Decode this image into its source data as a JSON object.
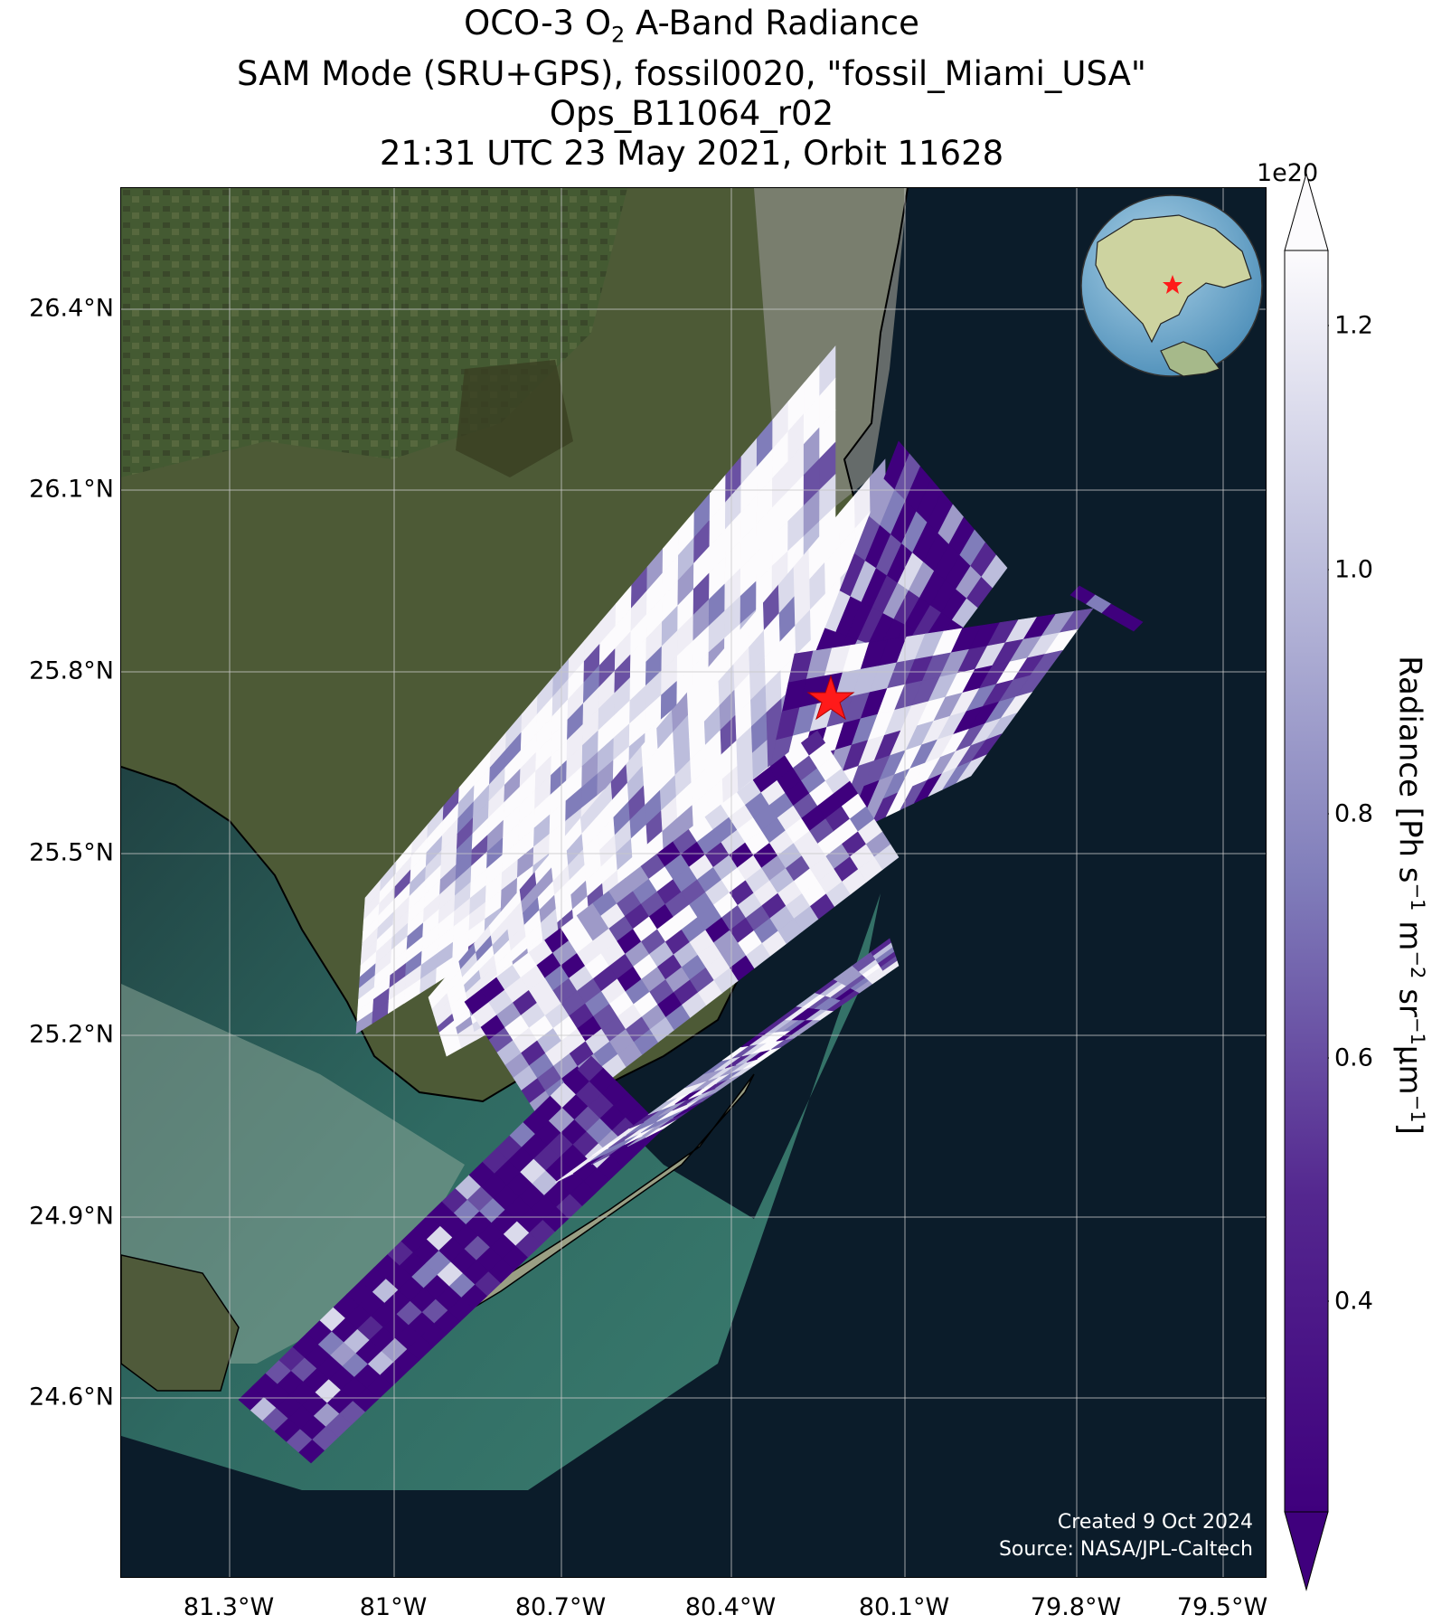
{
  "title": {
    "line1_prefix": "OCO-3 O",
    "line1_sub": "2",
    "line1_suffix": " A-Band Radiance",
    "line2": "SAM Mode (SRU+GPS), fossil0020, \"fossil_Miami_USA\"",
    "line3": "Ops_B11064_r02",
    "line4": "21:31 UTC 23 May 2021, Orbit 11628"
  },
  "map": {
    "lat_labels": [
      "26.4°N",
      "26.1°N",
      "25.8°N",
      "25.5°N",
      "25.2°N",
      "24.9°N",
      "24.6°N"
    ],
    "lon_labels": [
      "81.3°W",
      "81°W",
      "80.7°W",
      "80.4°W",
      "80.1°W",
      "79.8°W",
      "79.5°W"
    ],
    "target_marker": "red-star",
    "credit_line1": "Created 9 Oct 2024",
    "credit_line2": "Source: NASA/JPL-Caltech"
  },
  "colorbar": {
    "exponent": "1e20",
    "ticks": [
      "1.2",
      "1.0",
      "0.8",
      "0.6",
      "0.4"
    ],
    "label_parts": [
      "Radiance [Ph s",
      "−1",
      " m",
      "−2",
      " sr",
      "−1",
      "μm",
      "−1",
      "]"
    ],
    "colors": {
      "low": "#3f007d",
      "mid": "#807dba",
      "high": "#fcfbfd"
    }
  }
}
